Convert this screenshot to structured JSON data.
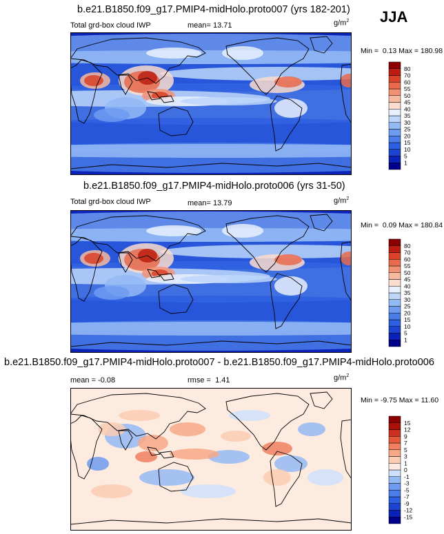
{
  "season": "JJA",
  "panels": [
    {
      "title": "b.e21.B1850.f09_g17.PMIP4-midHolo.proto007 (yrs 182-201)",
      "left_label": "Total grd-box cloud IWP",
      "stat_label": "mean=",
      "stat_value": "13.71",
      "units_base": "g/m",
      "units_sup": "2",
      "min_label": "Min =",
      "min_value": "0.13",
      "max_label": "Max =",
      "max_value": "180.98",
      "kind": "abs"
    },
    {
      "title": "b.e21.B1850.f09_g17.PMIP4-midHolo.proto006 (yrs 31-50)",
      "left_label": "Total grd-box cloud IWP",
      "stat_label": "mean=",
      "stat_value": "13.79",
      "units_base": "g/m",
      "units_sup": "2",
      "min_label": "Min =",
      "min_value": "0.09",
      "max_label": "Max =",
      "max_value": "180.84",
      "kind": "abs"
    },
    {
      "title": "b.e21.B1850.f09_g17.PMIP4-midHolo.proto007 - b.e21.B1850.f09_g17.PMIP4-midHolo.proto006",
      "left_label": "mean =",
      "left_value": "-0.08",
      "stat_label": "rmse =",
      "stat_value": "1.41",
      "units_base": "g/m",
      "units_sup": "2",
      "min_label": "Min =",
      "min_value": "-9.75",
      "max_label": "Max =",
      "max_value": "11.60",
      "kind": "diff"
    }
  ],
  "chart_data": [
    {
      "type": "heatmap",
      "title": "b.e21.B1850.f09_g17.PMIP4-midHolo.proto007 (yrs 182-201)",
      "variable": "Total grd-box cloud IWP",
      "units": "g/m2",
      "mean": 13.71,
      "min": 0.13,
      "max": 180.98,
      "colorbar_levels": [
        "1",
        "5",
        "10",
        "15",
        "20",
        "25",
        "30",
        "35",
        "40",
        "45",
        "50",
        "55",
        "60",
        "70",
        "80"
      ],
      "colorbar_colors": [
        "#00008b",
        "#0a22b8",
        "#1c44d0",
        "#2d5fe0",
        "#4a7de8",
        "#6d9bf0",
        "#94baf5",
        "#bdd6fa",
        "#e8f0fd",
        "#fbdccd",
        "#f7b99f",
        "#f29274",
        "#e96a4c",
        "#d94128",
        "#bb1e10",
        "#8b0000"
      ]
    },
    {
      "type": "heatmap",
      "title": "b.e21.B1850.f09_g17.PMIP4-midHolo.proto006 (yrs 31-50)",
      "variable": "Total grd-box cloud IWP",
      "units": "g/m2",
      "mean": 13.79,
      "min": 0.09,
      "max": 180.84,
      "colorbar_levels": [
        "1",
        "5",
        "10",
        "15",
        "20",
        "25",
        "30",
        "35",
        "40",
        "45",
        "50",
        "55",
        "60",
        "70",
        "80"
      ],
      "colorbar_colors": [
        "#00008b",
        "#0a22b8",
        "#1c44d0",
        "#2d5fe0",
        "#4a7de8",
        "#6d9bf0",
        "#94baf5",
        "#bdd6fa",
        "#e8f0fd",
        "#fbdccd",
        "#f7b99f",
        "#f29274",
        "#e96a4c",
        "#d94128",
        "#bb1e10",
        "#8b0000"
      ]
    },
    {
      "type": "heatmap",
      "title": "b.e21.B1850.f09_g17.PMIP4-midHolo.proto007 - b.e21.B1850.f09_g17.PMIP4-midHolo.proto006",
      "units": "g/m2",
      "mean": -0.08,
      "rmse": 1.41,
      "min": -9.75,
      "max": 11.6,
      "colorbar_levels": [
        "-15",
        "-12",
        "-9",
        "-7",
        "-5",
        "-3",
        "-1",
        "0",
        "1",
        "3",
        "5",
        "7",
        "9",
        "12",
        "15"
      ],
      "colorbar_colors": [
        "#00008b",
        "#0a22b8",
        "#1c44d0",
        "#2d5fe0",
        "#4a7de8",
        "#6d9bf0",
        "#94baf5",
        "#cfe0fb",
        "#fdebdf",
        "#fbcdb4",
        "#f7a887",
        "#f08060",
        "#e4583c",
        "#cc3020",
        "#aa1208",
        "#8b0000"
      ]
    }
  ]
}
